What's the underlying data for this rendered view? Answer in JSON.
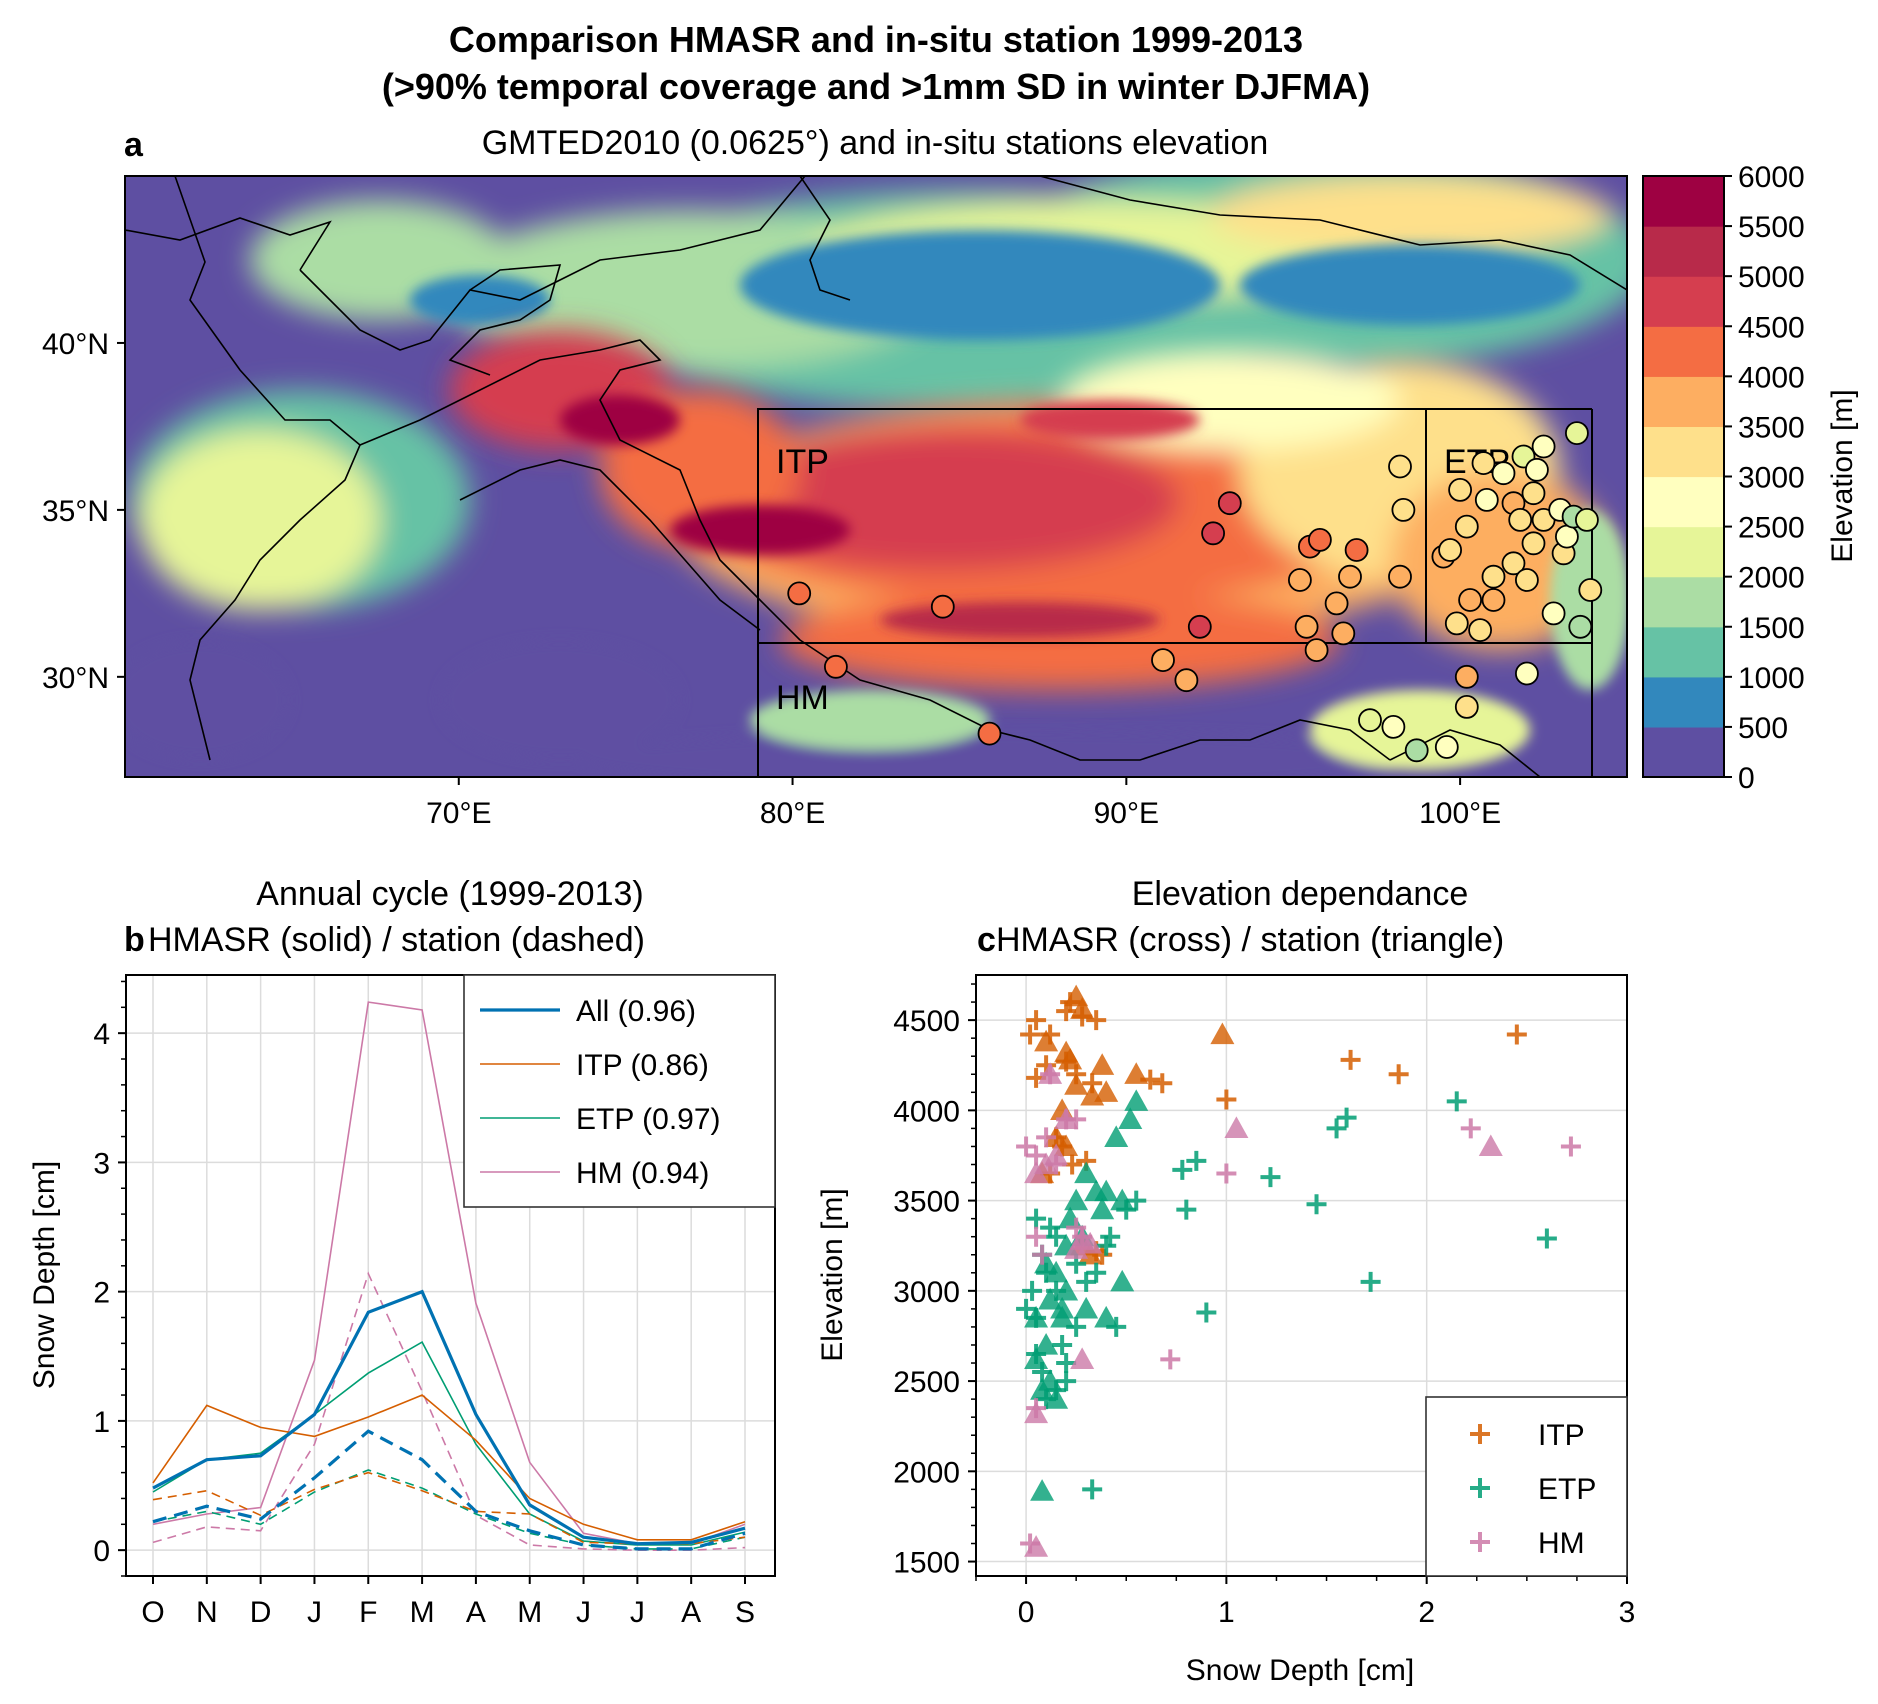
{
  "figure": {
    "suptitle_line1": "Comparison HMASR and in-situ station 1999-2013",
    "suptitle_line2": "(>90% temporal coverage and >1mm SD in winter DJFMA)"
  },
  "chart_data": [
    {
      "panel": "a",
      "type": "map",
      "title": "GMTED2010 (0.0625°) and in-situ stations elevation",
      "lon_range": [
        60,
        105
      ],
      "lat_range": [
        27,
        45
      ],
      "lon_ticks": [
        70,
        80,
        90,
        100
      ],
      "lon_tick_labels": [
        "70°E",
        "80°E",
        "90°E",
        "100°E"
      ],
      "lat_ticks": [
        30,
        35,
        40
      ],
      "lat_tick_labels": [
        "30°N",
        "35°N",
        "40°N"
      ],
      "regions": [
        {
          "name": "ITP",
          "lon": [
            79,
            98.9
          ],
          "lat": [
            31,
            38
          ]
        },
        {
          "name": "ETP",
          "lon": [
            98.9,
            104
          ],
          "lat": [
            31,
            38
          ]
        },
        {
          "name": "HM",
          "lon": [
            79,
            104
          ],
          "lat": [
            27,
            31
          ]
        }
      ],
      "colorbar": {
        "label": "Elevation [m]",
        "levels": [
          0,
          500,
          1000,
          1500,
          2000,
          2500,
          3000,
          3500,
          4000,
          4500,
          5000,
          5500,
          6000
        ],
        "tick_labels": [
          "0",
          "500",
          "1000",
          "1500",
          "2000",
          "2500",
          "3000",
          "3500",
          "4000",
          "4500",
          "5000",
          "5500",
          "6000"
        ],
        "colors": [
          "#5e4fa2",
          "#3288bd",
          "#66c2a5",
          "#abdda4",
          "#e6f598",
          "#ffffbf",
          "#fee08b",
          "#fdae61",
          "#f46d43",
          "#d53e4f",
          "#b82a4a",
          "#9e0142"
        ]
      },
      "stations": [
        [
          80.2,
          32.5,
          4300
        ],
        [
          81.3,
          30.3,
          4300
        ],
        [
          84.5,
          32.1,
          4400
        ],
        [
          85.9,
          28.3,
          4200
        ],
        [
          91.1,
          30.5,
          3700
        ],
        [
          91.8,
          29.9,
          3600
        ],
        [
          92.2,
          31.5,
          4500
        ],
        [
          92.6,
          34.3,
          4500
        ],
        [
          93.1,
          35.2,
          4500
        ],
        [
          95.2,
          32.9,
          3900
        ],
        [
          95.4,
          31.5,
          3600
        ],
        [
          95.5,
          33.9,
          4200
        ],
        [
          95.8,
          34.1,
          4300
        ],
        [
          95.7,
          30.8,
          3800
        ],
        [
          96.3,
          32.2,
          3700
        ],
        [
          96.7,
          33.0,
          3700
        ],
        [
          96.9,
          33.8,
          4200
        ],
        [
          96.5,
          31.3,
          3600
        ],
        [
          97.3,
          28.7,
          2300
        ],
        [
          98.2,
          36.3,
          3000
        ],
        [
          98.3,
          35.0,
          3300
        ],
        [
          98.2,
          33.0,
          3500
        ],
        [
          98.0,
          28.5,
          2700
        ],
        [
          98.7,
          27.8,
          1700
        ],
        [
          99.5,
          33.6,
          3500
        ],
        [
          99.6,
          27.9,
          2800
        ],
        [
          99.7,
          33.8,
          3200
        ],
        [
          99.9,
          31.6,
          3100
        ],
        [
          100.0,
          35.6,
          3000
        ],
        [
          100.2,
          34.5,
          3300
        ],
        [
          100.2,
          30.0,
          3900
        ],
        [
          100.2,
          29.1,
          3400
        ],
        [
          100.3,
          32.3,
          3900
        ],
        [
          100.6,
          31.4,
          3000
        ],
        [
          100.7,
          36.4,
          3300
        ],
        [
          100.8,
          35.3,
          2800
        ],
        [
          101.0,
          33.0,
          3200
        ],
        [
          101.0,
          32.3,
          3500
        ],
        [
          101.3,
          36.1,
          2600
        ],
        [
          101.6,
          35.2,
          3600
        ],
        [
          101.6,
          33.4,
          3100
        ],
        [
          101.8,
          34.7,
          3400
        ],
        [
          101.9,
          36.6,
          2300
        ],
        [
          102.0,
          32.9,
          3300
        ],
        [
          102.2,
          34.0,
          3100
        ],
        [
          102.2,
          35.5,
          3000
        ],
        [
          102.5,
          36.9,
          2500
        ],
        [
          102.3,
          36.2,
          2900
        ],
        [
          102.5,
          34.7,
          3000
        ],
        [
          102.0,
          30.1,
          2600
        ],
        [
          102.8,
          31.9,
          2700
        ],
        [
          103.0,
          35.0,
          2600
        ],
        [
          103.1,
          33.7,
          3000
        ],
        [
          103.2,
          34.2,
          2500
        ],
        [
          103.4,
          34.8,
          1800
        ],
        [
          103.6,
          31.5,
          1500
        ],
        [
          103.5,
          37.3,
          2100
        ],
        [
          103.8,
          34.7,
          2300
        ],
        [
          103.9,
          32.6,
          3400
        ]
      ]
    },
    {
      "panel": "b",
      "type": "line",
      "title_line1": "Annual cycle (1999-2013)",
      "title_line2": "HMASR (solid) / station (dashed)",
      "categories": [
        "O",
        "N",
        "D",
        "J",
        "F",
        "M",
        "A",
        "M",
        "J",
        "J",
        "A",
        "S"
      ],
      "ylabel": "Snow Depth [cm]",
      "ylim": [
        -0.2,
        4.45
      ],
      "yticks": [
        0,
        1,
        2,
        3,
        4
      ],
      "legend_location": "upper right",
      "series": [
        {
          "name": "All (0.96)",
          "color": "#0072b2",
          "width": 3.2,
          "hmasr": [
            0.48,
            0.7,
            0.73,
            1.05,
            1.84,
            2.0,
            1.05,
            0.35,
            0.1,
            0.05,
            0.06,
            0.17
          ],
          "station": [
            0.22,
            0.34,
            0.24,
            0.56,
            0.92,
            0.7,
            0.3,
            0.15,
            0.04,
            0.01,
            0.01,
            0.13
          ]
        },
        {
          "name": "ITP (0.86)",
          "color": "#d55e00",
          "width": 1.6,
          "hmasr": [
            0.52,
            1.12,
            0.95,
            0.88,
            1.03,
            1.2,
            0.85,
            0.4,
            0.2,
            0.08,
            0.08,
            0.22
          ],
          "station": [
            0.39,
            0.46,
            0.27,
            0.47,
            0.6,
            0.46,
            0.3,
            0.28,
            0.06,
            0.05,
            0.05,
            0.1
          ]
        },
        {
          "name": "ETP (0.97)",
          "color": "#009e73",
          "width": 1.6,
          "hmasr": [
            0.45,
            0.7,
            0.75,
            1.05,
            1.37,
            1.61,
            0.82,
            0.28,
            0.07,
            0.04,
            0.04,
            0.14
          ],
          "station": [
            0.22,
            0.3,
            0.2,
            0.45,
            0.62,
            0.48,
            0.28,
            0.13,
            0.04,
            0.01,
            0.01,
            0.1
          ]
        },
        {
          "name": "HM (0.94)",
          "color": "#cc79a7",
          "width": 1.6,
          "hmasr": [
            0.2,
            0.28,
            0.33,
            1.47,
            4.24,
            4.18,
            1.91,
            0.68,
            0.13,
            0.05,
            0.05,
            0.2
          ],
          "station": [
            0.06,
            0.18,
            0.15,
            0.82,
            2.14,
            1.23,
            0.27,
            0.04,
            0.01,
            0.0,
            0.0,
            0.02
          ]
        }
      ]
    },
    {
      "panel": "c",
      "type": "scatter",
      "title_line1": "Elevation dependance",
      "title_line2": "HMASR (cross) / station (triangle)",
      "xlabel": "Snow Depth [cm]",
      "ylabel": "Elevation [m]",
      "xlim": [
        -0.25,
        3.0
      ],
      "ylim": [
        1420,
        4750
      ],
      "xticks": [
        0,
        1,
        2,
        3
      ],
      "yticks": [
        1500,
        2000,
        2500,
        3000,
        3500,
        4000,
        4500
      ],
      "legend_location": "lower right",
      "series": [
        {
          "name": "ITP",
          "color": "#d55e00",
          "hmasr": [
            [
              0.02,
              4420
            ],
            [
              0.05,
              4500
            ],
            [
              0.12,
              4420
            ],
            [
              0.2,
              4550
            ],
            [
              0.22,
              4600
            ],
            [
              0.28,
              4520
            ],
            [
              0.35,
              4500
            ],
            [
              0.1,
              4250
            ],
            [
              0.2,
              4270
            ],
            [
              0.25,
              4200
            ],
            [
              0.33,
              4150
            ],
            [
              0.05,
              4180
            ],
            [
              0.15,
              3850
            ],
            [
              0.18,
              3800
            ],
            [
              0.23,
              3700
            ],
            [
              0.3,
              3720
            ],
            [
              0.12,
              3650
            ],
            [
              0.35,
              3220
            ],
            [
              0.38,
              3200
            ],
            [
              0.68,
              4150
            ],
            [
              1.0,
              4060
            ],
            [
              1.62,
              4280
            ],
            [
              1.86,
              4200
            ],
            [
              2.45,
              4420
            ],
            [
              0.62,
              4170
            ]
          ],
          "station": [
            [
              0.25,
              4630
            ],
            [
              0.28,
              4560
            ],
            [
              0.1,
              4380
            ],
            [
              0.2,
              4320
            ],
            [
              0.22,
              4280
            ],
            [
              0.25,
              4140
            ],
            [
              0.33,
              4080
            ],
            [
              0.38,
              4250
            ],
            [
              0.55,
              4200
            ],
            [
              0.15,
              3850
            ],
            [
              0.2,
              3800
            ],
            [
              0.08,
              3650
            ],
            [
              0.28,
              3250
            ],
            [
              0.32,
              3200
            ],
            [
              0.98,
              4420
            ],
            [
              0.4,
              4100
            ],
            [
              0.18,
              4000
            ]
          ]
        },
        {
          "name": "ETP",
          "color": "#009e73",
          "hmasr": [
            [
              0.0,
              2900
            ],
            [
              0.03,
              3000
            ],
            [
              0.05,
              2850
            ],
            [
              0.08,
              3200
            ],
            [
              0.1,
              3100
            ],
            [
              0.12,
              3350
            ],
            [
              0.15,
              3000
            ],
            [
              0.18,
              2700
            ],
            [
              0.2,
              2600
            ],
            [
              0.25,
              3150
            ],
            [
              0.3,
              3050
            ],
            [
              0.35,
              3100
            ],
            [
              0.4,
              3250
            ],
            [
              0.42,
              3300
            ],
            [
              0.45,
              2800
            ],
            [
              0.5,
              3450
            ],
            [
              0.55,
              3500
            ],
            [
              0.05,
              3400
            ],
            [
              0.08,
              2550
            ],
            [
              0.1,
              2400
            ],
            [
              0.15,
              2450
            ],
            [
              0.2,
              2500
            ],
            [
              0.25,
              2800
            ],
            [
              0.78,
              3670
            ],
            [
              0.8,
              3450
            ],
            [
              0.85,
              3720
            ],
            [
              0.9,
              2880
            ],
            [
              1.22,
              3630
            ],
            [
              1.45,
              3480
            ],
            [
              1.55,
              3900
            ],
            [
              1.6,
              3960
            ],
            [
              1.72,
              3050
            ],
            [
              2.15,
              4050
            ],
            [
              2.6,
              3290
            ],
            [
              0.33,
              1900
            ],
            [
              0.05,
              2650
            ],
            [
              0.15,
              3300
            ]
          ],
          "station": [
            [
              0.05,
              2850
            ],
            [
              0.1,
              2700
            ],
            [
              0.12,
              2950
            ],
            [
              0.15,
              3100
            ],
            [
              0.18,
              2900
            ],
            [
              0.2,
              3250
            ],
            [
              0.22,
              3400
            ],
            [
              0.25,
              3500
            ],
            [
              0.28,
              3300
            ],
            [
              0.3,
              3650
            ],
            [
              0.35,
              3550
            ],
            [
              0.38,
              3450
            ],
            [
              0.4,
              3550
            ],
            [
              0.45,
              3850
            ],
            [
              0.48,
              3500
            ],
            [
              0.52,
              3950
            ],
            [
              0.55,
              4050
            ],
            [
              0.1,
              3150
            ],
            [
              0.08,
              2450
            ],
            [
              0.12,
              2500
            ],
            [
              0.15,
              2400
            ],
            [
              0.18,
              2850
            ],
            [
              0.2,
              3000
            ],
            [
              0.3,
              2900
            ],
            [
              0.4,
              2850
            ],
            [
              0.48,
              3050
            ],
            [
              0.08,
              1890
            ],
            [
              0.05,
              2620
            ]
          ]
        },
        {
          "name": "HM",
          "color": "#cc79a7",
          "hmasr": [
            [
              0.0,
              3800
            ],
            [
              0.05,
              3750
            ],
            [
              0.1,
              3850
            ],
            [
              0.15,
              3700
            ],
            [
              0.2,
              3950
            ],
            [
              0.25,
              3950
            ],
            [
              0.05,
              3300
            ],
            [
              0.08,
              3200
            ],
            [
              0.25,
              3350
            ],
            [
              0.28,
              3300
            ],
            [
              0.12,
              4200
            ],
            [
              0.05,
              2350
            ],
            [
              0.72,
              2620
            ],
            [
              1.0,
              3650
            ],
            [
              2.22,
              3900
            ],
            [
              2.72,
              3800
            ],
            [
              0.02,
              1600
            ]
          ],
          "station": [
            [
              0.05,
              3650
            ],
            [
              0.1,
              3700
            ],
            [
              0.15,
              3750
            ],
            [
              0.2,
              3950
            ],
            [
              0.12,
              4200
            ],
            [
              0.28,
              3280
            ],
            [
              0.32,
              3260
            ],
            [
              0.05,
              2320
            ],
            [
              0.28,
              2620
            ],
            [
              1.05,
              3900
            ],
            [
              2.32,
              3800
            ],
            [
              0.05,
              1580
            ],
            [
              0.25,
              3230
            ]
          ]
        }
      ]
    }
  ]
}
